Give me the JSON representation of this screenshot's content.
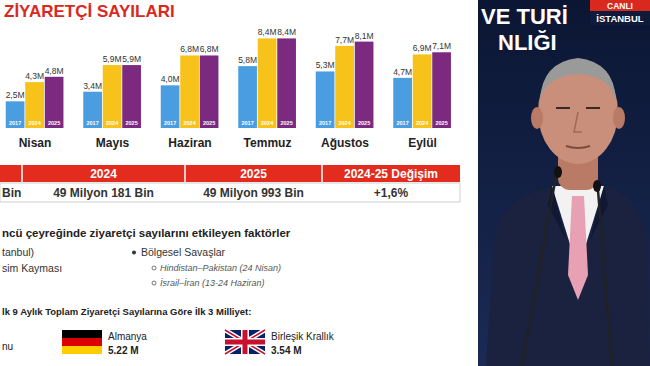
{
  "title": "ZİYARETÇİ SAYILARI",
  "chart_data": {
    "type": "bar",
    "categories": [
      "Nisan",
      "Mayıs",
      "Haziran",
      "Temmuz",
      "Ağustos",
      "Eylül"
    ],
    "series": [
      {
        "name": "2017",
        "color": "#4a9de0",
        "values": [
          2.5,
          3.4,
          4.0,
          5.8,
          5.3,
          4.7
        ],
        "value_labels": [
          "2,5M",
          "3,4M",
          "4,0M",
          "5,8M",
          "5,3M",
          "4,7M"
        ]
      },
      {
        "name": "2024",
        "color": "#f7c21a",
        "values": [
          4.3,
          5.9,
          6.8,
          8.4,
          7.7,
          6.9
        ],
        "value_labels": [
          "4,3M",
          "5,9M",
          "6,8M",
          "8,4M",
          "7,7M",
          "6,9M"
        ]
      },
      {
        "name": "2025",
        "color": "#7b2a80",
        "values": [
          4.8,
          5.9,
          6.8,
          8.4,
          8.1,
          7.1
        ],
        "value_labels": [
          "4,8M",
          "5,9M",
          "6,8M",
          "8,4M",
          "8,1M",
          "7,1M"
        ]
      }
    ],
    "ylim": [
      0,
      9
    ],
    "data_labels": true,
    "tick_labels": "x"
  },
  "table": {
    "columns": [
      "2024",
      "2025",
      "2024-25 Değişim"
    ],
    "rows": [
      {
        "stub": "Bin",
        "cells": [
          "49 Milyon 181 Bin",
          "49 Milyon 993 Bin",
          "+1,6%"
        ]
      }
    ]
  },
  "factors": {
    "title": "ncü çeyreğinde ziyaretçi sayılarını etkileyen faktörler",
    "left": [
      "tanbul)",
      "sim Kayması"
    ],
    "right": {
      "heading": "Bölgesel Savaşlar",
      "items": [
        "Hindistan–Pakistan (24 Nisan)",
        "İsrail–İran (13-24 Haziran)"
      ]
    }
  },
  "nationalities": {
    "title": "lk 9 Aylık Toplam Ziyaretçi Sayılarına Göre İlk 3 Milliyet:",
    "stub": "nu",
    "items": [
      {
        "country": "Almanya",
        "value": "5.22 M"
      },
      {
        "country": "Birleşik Krallık",
        "value": "3.54 M"
      }
    ]
  },
  "broadcast": {
    "banner": [
      "VE TURİ",
      "NLIĞI"
    ],
    "live": "CANLI",
    "location": "İSTANBUL"
  }
}
